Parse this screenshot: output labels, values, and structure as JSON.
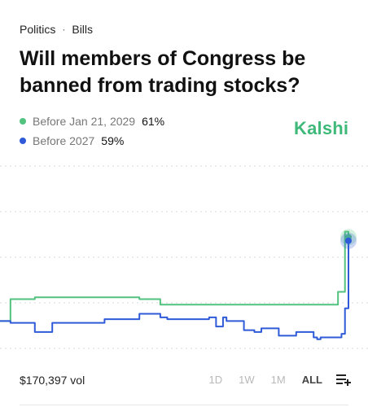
{
  "breadcrumb": {
    "category": "Politics",
    "separator": "·",
    "subcategory": "Bills"
  },
  "title": "Will members of Congress be banned from trading stocks?",
  "brand": {
    "name": "Kalshi",
    "color": "#3fb97a"
  },
  "legend": [
    {
      "label": "Before Jan 21, 2029",
      "pct": "61%",
      "color": "#52c27f"
    },
    {
      "label": "Before 2027",
      "pct": "59%",
      "color": "#2f5bd8"
    }
  ],
  "footer": {
    "volume": "$170,397 vol",
    "ranges": [
      "1D",
      "1W",
      "1M",
      "ALL"
    ],
    "active_range": "ALL",
    "menu_icon": "playlist-add-icon"
  },
  "chart_data": {
    "type": "line",
    "xlabel": "",
    "ylabel": "",
    "grid": true,
    "ylim": [
      0,
      100
    ],
    "x": [
      0,
      2,
      3,
      5,
      10,
      15,
      20,
      30,
      40,
      45,
      46,
      47,
      48,
      50,
      60,
      61,
      62,
      64,
      65,
      70,
      73,
      75,
      80,
      85,
      90,
      91,
      92,
      95,
      97,
      98,
      99,
      100
    ],
    "series": [
      {
        "name": "Before Jan 21, 2029",
        "color": "#52c27f",
        "values": [
          15,
          15,
          27,
          27,
          28,
          28,
          28,
          28,
          27,
          27,
          24,
          24,
          24,
          24,
          24,
          24,
          24,
          24,
          24,
          24,
          24,
          24,
          24,
          24,
          24,
          24,
          24,
          24,
          31,
          31,
          64,
          61
        ]
      },
      {
        "name": "Before 2027",
        "color": "#2f5bd8",
        "values": [
          15,
          15,
          14,
          14,
          9,
          14,
          14,
          16,
          19,
          19,
          17,
          17,
          16,
          16,
          17,
          17,
          12,
          17,
          15,
          10,
          9,
          11,
          7,
          9,
          6,
          5,
          6,
          6,
          6,
          8,
          22,
          59
        ]
      }
    ]
  }
}
